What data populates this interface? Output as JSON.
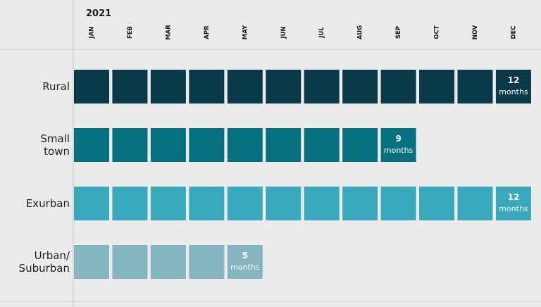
{
  "chart_data": {
    "type": "month-grid",
    "year_label": "2021",
    "months": [
      "JAN",
      "FEB",
      "MAR",
      "APR",
      "MAY",
      "JUN",
      "JUL",
      "AUG",
      "SEP",
      "OCT",
      "NOV",
      "DEC"
    ],
    "categories": [
      "Rural",
      "Small\ntown",
      "Exurban",
      "Urban/\nSuburban"
    ],
    "values": [
      12,
      9,
      12,
      5
    ],
    "unit_label": "months",
    "colors": [
      "#0a3947",
      "#06707f",
      "#39a9bb",
      "#84b5c1"
    ]
  }
}
